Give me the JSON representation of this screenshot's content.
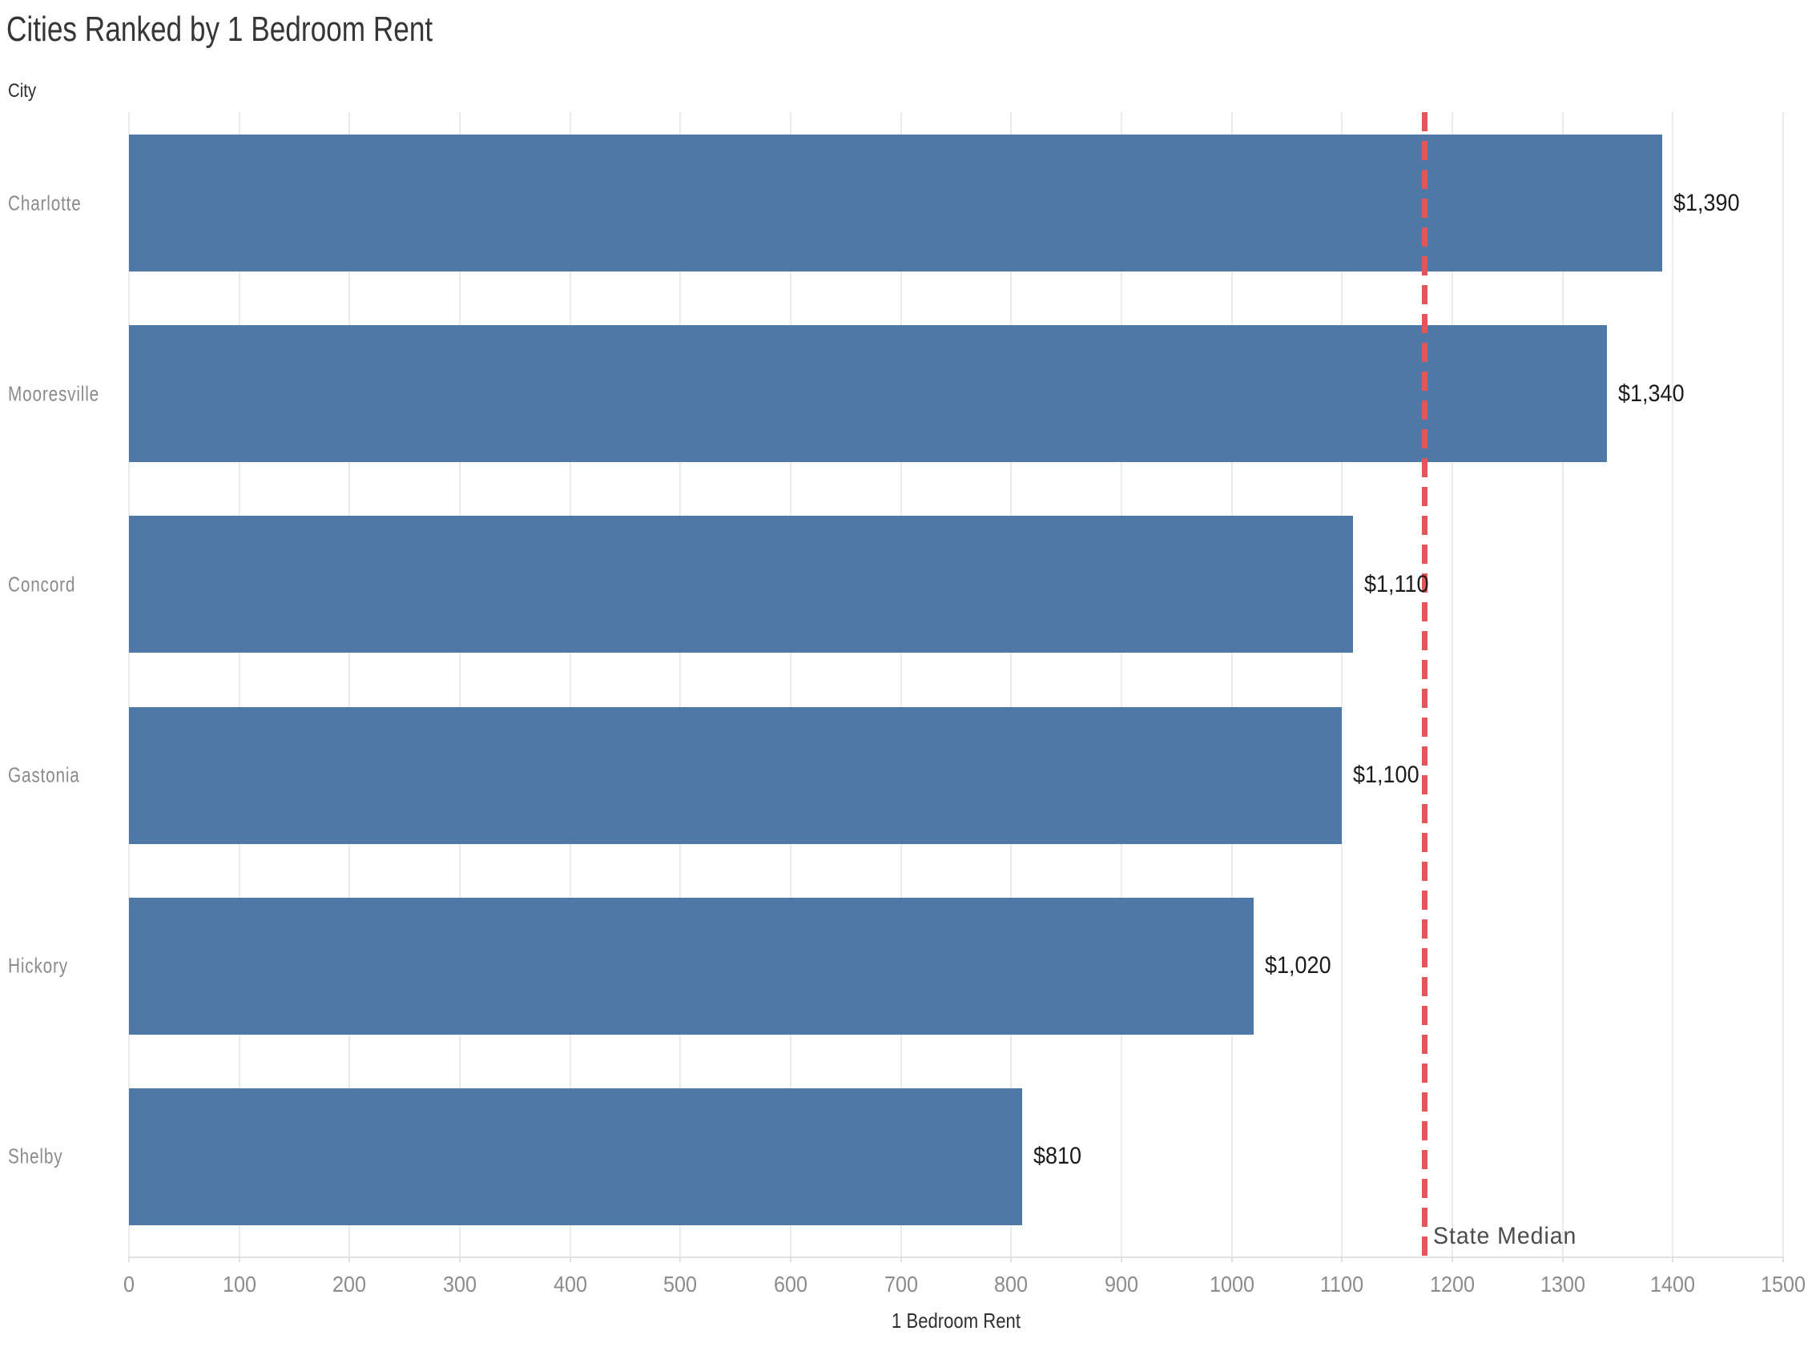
{
  "chart_data": {
    "type": "bar",
    "orientation": "horizontal",
    "title": "Cities Ranked by 1 Bedroom Rent",
    "ylabel": "City",
    "xlabel": "1 Bedroom Rent",
    "categories": [
      "Charlotte",
      "Mooresville",
      "Concord",
      "Gastonia",
      "Hickory",
      "Shelby"
    ],
    "values": [
      1390,
      1340,
      1110,
      1100,
      1020,
      810
    ],
    "value_labels": [
      "$1,390",
      "$1,340",
      "$1,110",
      "$1,100",
      "$1,020",
      "$810"
    ],
    "xlim": [
      0,
      1500
    ],
    "x_ticks": [
      0,
      100,
      200,
      300,
      400,
      500,
      600,
      700,
      800,
      900,
      1000,
      1100,
      1200,
      1300,
      1400,
      1500
    ],
    "grid": "vertical",
    "legend": "none",
    "reference_line": {
      "value": 1175,
      "label": "State Median",
      "style": "dashed"
    }
  },
  "colors": {
    "background": "#ffffff",
    "bar": "#4e79a7",
    "reference": "#e15759",
    "gridline": "#ebebeb",
    "axis_line": "#e0e0e0",
    "title_text": "#363636",
    "axis_title_text": "#2f2f2f",
    "category_text": "#8b8b8b",
    "tick_text": "#8c8c8c",
    "value_text": "#1b1b1b",
    "reference_label_text": "#4c4c4c"
  }
}
